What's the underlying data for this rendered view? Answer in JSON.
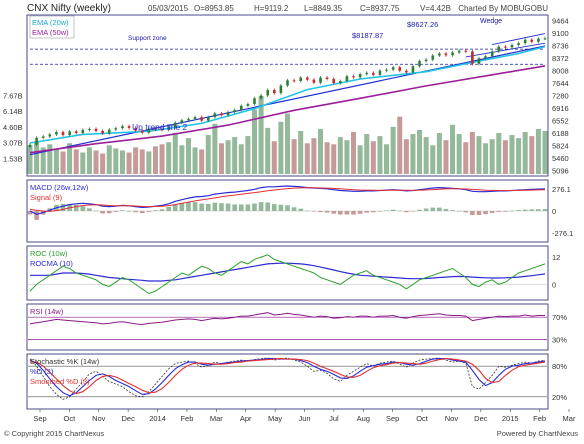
{
  "header": {
    "title": "CNX Nifty (weekly)",
    "date": "05/03/2015",
    "open": "O=8953.85",
    "high": "H=9119.2",
    "low": "L=8849.35",
    "close": "C=8937.75",
    "volume": "V=4.42B",
    "credit": "Charted By MOBUGOBU"
  },
  "footer": {
    "copyright": "© Copyright 2015 ChartNexus",
    "powered": "Powered by ChartNexus"
  },
  "colors": {
    "background": "#ffffff",
    "up_candle": "#2e7d32",
    "down_candle": "#c62828",
    "ema20": "#22c3e6",
    "ema50": "#9b1f9b",
    "trendline": "#1f2fd0",
    "support": "#1a1aa8",
    "volume_up": "#93b89a",
    "volume_down": "#c79a9a",
    "macd": "#2b2bd6",
    "signal": "#e03030",
    "roc": "#2ea02e",
    "rocma": "#2b2bd6",
    "rsi": "#8a1a8a",
    "stoch_k": "#333333",
    "stoch_d": "#2b2bd6",
    "stoch_sd": "#e03030",
    "panel_border": "#4a4a8a"
  },
  "chart_data": [
    {
      "type": "candlestick",
      "title": "CNX Nifty (weekly)",
      "series": [
        {
          "name": "EMA (20w)"
        },
        {
          "name": "EMA (50w)"
        }
      ],
      "price_axis": [
        "9464",
        "9100",
        "8736",
        "8372",
        "8008",
        "7644",
        "7280",
        "6916",
        "6552",
        "6188",
        "5824",
        "5460",
        "5096"
      ],
      "price_axis_values": [
        9464,
        9100,
        8736,
        8372,
        8008,
        7644,
        7280,
        6916,
        6552,
        6188,
        5824,
        5460,
        5096
      ],
      "ylim": [
        5000,
        9560
      ],
      "annotations": [
        "$8627.26",
        "$8187.87",
        "Support zone",
        "Wedge",
        "Up trend line 2"
      ],
      "support_levels": [
        8627.26,
        8187.87
      ],
      "x_labels": [
        "Sep",
        "Oct",
        "Nov",
        "Dec",
        "2014",
        "Feb",
        "Mar",
        "Apr",
        "May",
        "Jun",
        "Jul",
        "Aug",
        "Sep",
        "Oct",
        "Nov",
        "Dec",
        "2015",
        "Feb",
        "Mar"
      ],
      "close": [
        5850,
        6050,
        6090,
        6150,
        6220,
        6130,
        6240,
        6190,
        6280,
        6310,
        6250,
        6180,
        6290,
        6330,
        6390,
        6340,
        6260,
        6200,
        6320,
        6300,
        6280,
        6360,
        6490,
        6560,
        6600,
        6650,
        6550,
        6650,
        6760,
        6710,
        6800,
        6860,
        6980,
        7030,
        7200,
        7280,
        7440,
        7350,
        7570,
        7720,
        7700,
        7800,
        7740,
        7650,
        7800,
        7760,
        7640,
        7700,
        7840,
        7810,
        7900,
        7940,
        7880,
        8000,
        8030,
        8100,
        8000,
        7950,
        8130,
        8280,
        8320,
        8440,
        8500,
        8450,
        8530,
        8580,
        8560,
        8200,
        8360,
        8420,
        8560,
        8700,
        8680,
        8750,
        8800,
        8900,
        8840,
        8930,
        8940
      ],
      "ema20_points": [
        [
          0,
          5900
        ],
        [
          8,
          6150
        ],
        [
          18,
          6240
        ],
        [
          26,
          6470
        ],
        [
          34,
          6900
        ],
        [
          42,
          7450
        ],
        [
          50,
          7760
        ],
        [
          60,
          7970
        ],
        [
          68,
          8280
        ],
        [
          74,
          8500
        ],
        [
          78,
          8700
        ]
      ],
      "ema50_points": [
        [
          0,
          5620
        ],
        [
          10,
          5880
        ],
        [
          20,
          6100
        ],
        [
          30,
          6420
        ],
        [
          40,
          6850
        ],
        [
          50,
          7200
        ],
        [
          60,
          7560
        ],
        [
          70,
          7880
        ],
        [
          78,
          8140
        ]
      ],
      "trendline_points": [
        [
          0,
          5560
        ],
        [
          78,
          8720
        ]
      ],
      "volume_axis": [
        "7.67B",
        "6.14B",
        "4.60B",
        "3.07B",
        "1.53B"
      ],
      "volume_axis_values": [
        7.67,
        6.14,
        4.6,
        3.07,
        1.53
      ],
      "volume": [
        2.8,
        3.2,
        2.6,
        2.9,
        2.5,
        2.2,
        3.0,
        2.4,
        2.1,
        2.6,
        2.3,
        2.0,
        2.8,
        2.5,
        2.3,
        2.1,
        2.6,
        2.4,
        2.2,
        2.7,
        2.9,
        3.1,
        4.0,
        2.8,
        3.5,
        2.6,
        2.4,
        3.8,
        4.9,
        3.0,
        3.3,
        3.6,
        2.9,
        3.7,
        6.3,
        7.6,
        4.5,
        3.2,
        5.1,
        5.9,
        3.4,
        4.2,
        3.0,
        3.5,
        4.4,
        3.1,
        2.9,
        3.6,
        3.3,
        4.1,
        2.8,
        3.9,
        3.2,
        3.7,
        2.9,
        4.6,
        5.6,
        3.4,
        3.9,
        4.3,
        3.6,
        2.8,
        4.0,
        3.3,
        4.8,
        3.9,
        3.1,
        4.1,
        3.7,
        3.0,
        3.4,
        4.0,
        3.3,
        3.8,
        3.5,
        4.1,
        3.7,
        4.4,
        4.2
      ]
    },
    {
      "type": "line",
      "series": [
        {
          "name": "MACD (26w,12w)"
        },
        {
          "name": "Signal (9)"
        }
      ],
      "axis": [
        "276.1",
        "0",
        "-276.1"
      ],
      "axis_values": [
        276.1,
        0,
        -276.1
      ],
      "ylim": [
        -360,
        360
      ],
      "macd": [
        0,
        -40,
        -20,
        10,
        40,
        60,
        80,
        90,
        95,
        90,
        80,
        60,
        55,
        60,
        70,
        65,
        55,
        45,
        50,
        60,
        70,
        90,
        120,
        140,
        160,
        175,
        180,
        190,
        210,
        220,
        230,
        235,
        245,
        255,
        270,
        290,
        300,
        300,
        305,
        310,
        305,
        300,
        290,
        285,
        280,
        275,
        265,
        255,
        250,
        245,
        245,
        250,
        250,
        255,
        260,
        265,
        260,
        250,
        255,
        265,
        275,
        285,
        290,
        285,
        280,
        275,
        265,
        245,
        240,
        240,
        245,
        250,
        250,
        255,
        260,
        265,
        268,
        272,
        276
      ],
      "signal": [
        20,
        10,
        0,
        -5,
        5,
        20,
        40,
        55,
        68,
        75,
        78,
        74,
        68,
        65,
        66,
        65,
        62,
        57,
        55,
        56,
        60,
        67,
        80,
        95,
        110,
        125,
        138,
        150,
        163,
        176,
        188,
        198,
        208,
        218,
        228,
        240,
        252,
        261,
        270,
        278,
        284,
        287,
        288,
        288,
        286,
        284,
        280,
        275,
        270,
        265,
        261,
        259,
        257,
        256,
        257,
        258,
        258,
        257,
        256,
        258,
        261,
        266,
        271,
        274,
        275,
        275,
        273,
        268,
        263,
        258,
        256,
        255,
        254,
        254,
        255,
        257,
        259,
        262,
        265
      ]
    },
    {
      "type": "line",
      "series": [
        {
          "name": "ROC (10w)"
        },
        {
          "name": "ROCMA (10)"
        }
      ],
      "axis": [
        "12",
        "0"
      ],
      "axis_values": [
        12,
        0
      ],
      "ylim": [
        -6,
        16
      ],
      "roc": [
        -3,
        0,
        2,
        4,
        6,
        8,
        7,
        5,
        4,
        3,
        2,
        0,
        -1,
        1,
        3,
        2,
        0,
        -2,
        -4,
        -3,
        -1,
        1,
        3,
        5,
        4,
        6,
        8,
        7,
        5,
        4,
        6,
        8,
        10,
        9,
        11,
        12,
        13,
        11,
        10,
        9,
        8,
        7,
        6,
        5,
        3,
        2,
        1,
        0,
        2,
        4,
        5,
        6,
        4,
        3,
        2,
        1,
        0,
        -2,
        0,
        2,
        3,
        4,
        5,
        6,
        7,
        5,
        3,
        0,
        -1,
        1,
        2,
        0,
        1,
        3,
        5,
        6,
        7,
        8,
        9
      ],
      "rocma": [
        4,
        4,
        4,
        4,
        4.5,
        5,
        5,
        5,
        4.8,
        4.5,
        4,
        3.5,
        3,
        2.8,
        2.5,
        2.2,
        2,
        1.8,
        1.5,
        1.5,
        1.5,
        1.8,
        2,
        2.5,
        3,
        3.5,
        4,
        4.5,
        5,
        5.5,
        6,
        6.5,
        7,
        7.5,
        8,
        8.5,
        9,
        9.2,
        9.3,
        9.3,
        9.2,
        9,
        8.7,
        8.2,
        7.6,
        7,
        6.3,
        5.6,
        5,
        4.5,
        4,
        3.8,
        3.6,
        3.4,
        3.2,
        3,
        2.8,
        2.6,
        2.5,
        2.5,
        2.6,
        2.8,
        3,
        3.2,
        3.4,
        3.5,
        3.4,
        3.2,
        3,
        2.9,
        2.8,
        2.8,
        2.9,
        3,
        3.2,
        3.5,
        3.8,
        4.2,
        4.6
      ]
    },
    {
      "type": "line",
      "series": [
        {
          "name": "RSI (14w)"
        }
      ],
      "axis": [
        "70%",
        "30%"
      ],
      "axis_values": [
        70,
        30
      ],
      "ylim": [
        15,
        90
      ],
      "rsi": [
        58,
        60,
        62,
        64,
        66,
        65,
        64,
        63,
        62,
        61,
        60,
        58,
        59,
        61,
        62,
        60,
        58,
        57,
        59,
        60,
        61,
        63,
        65,
        66,
        67,
        66,
        64,
        66,
        68,
        67,
        68,
        70,
        72,
        72,
        74,
        76,
        78,
        74,
        75,
        77,
        75,
        74,
        72,
        70,
        72,
        71,
        68,
        69,
        71,
        70,
        72,
        72,
        70,
        72,
        72,
        73,
        70,
        68,
        71,
        73,
        74,
        75,
        76,
        74,
        73,
        73,
        72,
        64,
        66,
        68,
        70,
        72,
        71,
        72,
        72,
        74,
        72,
        73,
        73
      ]
    },
    {
      "type": "line",
      "series": [
        {
          "name": "Stochastic %K (14w)"
        },
        {
          "name": "%D (3)"
        },
        {
          "name": "Smoothed %D (3)"
        }
      ],
      "axis": [
        "80%",
        "20%"
      ],
      "axis_values": [
        80,
        20
      ],
      "ylim": [
        0,
        100
      ],
      "k": [
        95,
        80,
        60,
        40,
        25,
        15,
        20,
        35,
        50,
        65,
        70,
        60,
        50,
        45,
        40,
        30,
        22,
        20,
        30,
        45,
        60,
        75,
        85,
        88,
        90,
        85,
        78,
        82,
        88,
        85,
        88,
        90,
        92,
        90,
        93,
        95,
        96,
        92,
        94,
        96,
        92,
        88,
        80,
        70,
        72,
        66,
        55,
        50,
        62,
        70,
        78,
        85,
        80,
        86,
        88,
        90,
        84,
        78,
        86,
        92,
        94,
        95,
        96,
        92,
        88,
        90,
        86,
        40,
        35,
        48,
        62,
        80,
        78,
        82,
        85,
        88,
        86,
        90,
        92
      ],
      "d": [
        92,
        86,
        72,
        55,
        40,
        28,
        22,
        28,
        40,
        52,
        62,
        65,
        60,
        52,
        46,
        40,
        32,
        25,
        26,
        35,
        48,
        62,
        75,
        83,
        88,
        88,
        84,
        82,
        84,
        85,
        87,
        88,
        90,
        91,
        92,
        93,
        95,
        95,
        94,
        94,
        94,
        91,
        87,
        80,
        74,
        70,
        64,
        57,
        56,
        61,
        70,
        78,
        81,
        84,
        85,
        88,
        87,
        84,
        82,
        85,
        90,
        94,
        95,
        95,
        92,
        90,
        88,
        72,
        54,
        42,
        48,
        62,
        74,
        80,
        82,
        85,
        86,
        88,
        90
      ],
      "sd": [
        88,
        88,
        80,
        68,
        55,
        42,
        32,
        26,
        30,
        40,
        52,
        60,
        62,
        59,
        53,
        46,
        40,
        33,
        28,
        29,
        36,
        48,
        62,
        74,
        82,
        86,
        86,
        85,
        84,
        84,
        85,
        87,
        88,
        90,
        91,
        92,
        93,
        94,
        95,
        94,
        94,
        93,
        91,
        86,
        80,
        75,
        70,
        64,
        59,
        58,
        62,
        70,
        77,
        81,
        83,
        86,
        87,
        86,
        85,
        84,
        86,
        90,
        93,
        95,
        94,
        92,
        90,
        84,
        72,
        56,
        48,
        50,
        62,
        72,
        79,
        82,
        84,
        86,
        88
      ]
    }
  ]
}
